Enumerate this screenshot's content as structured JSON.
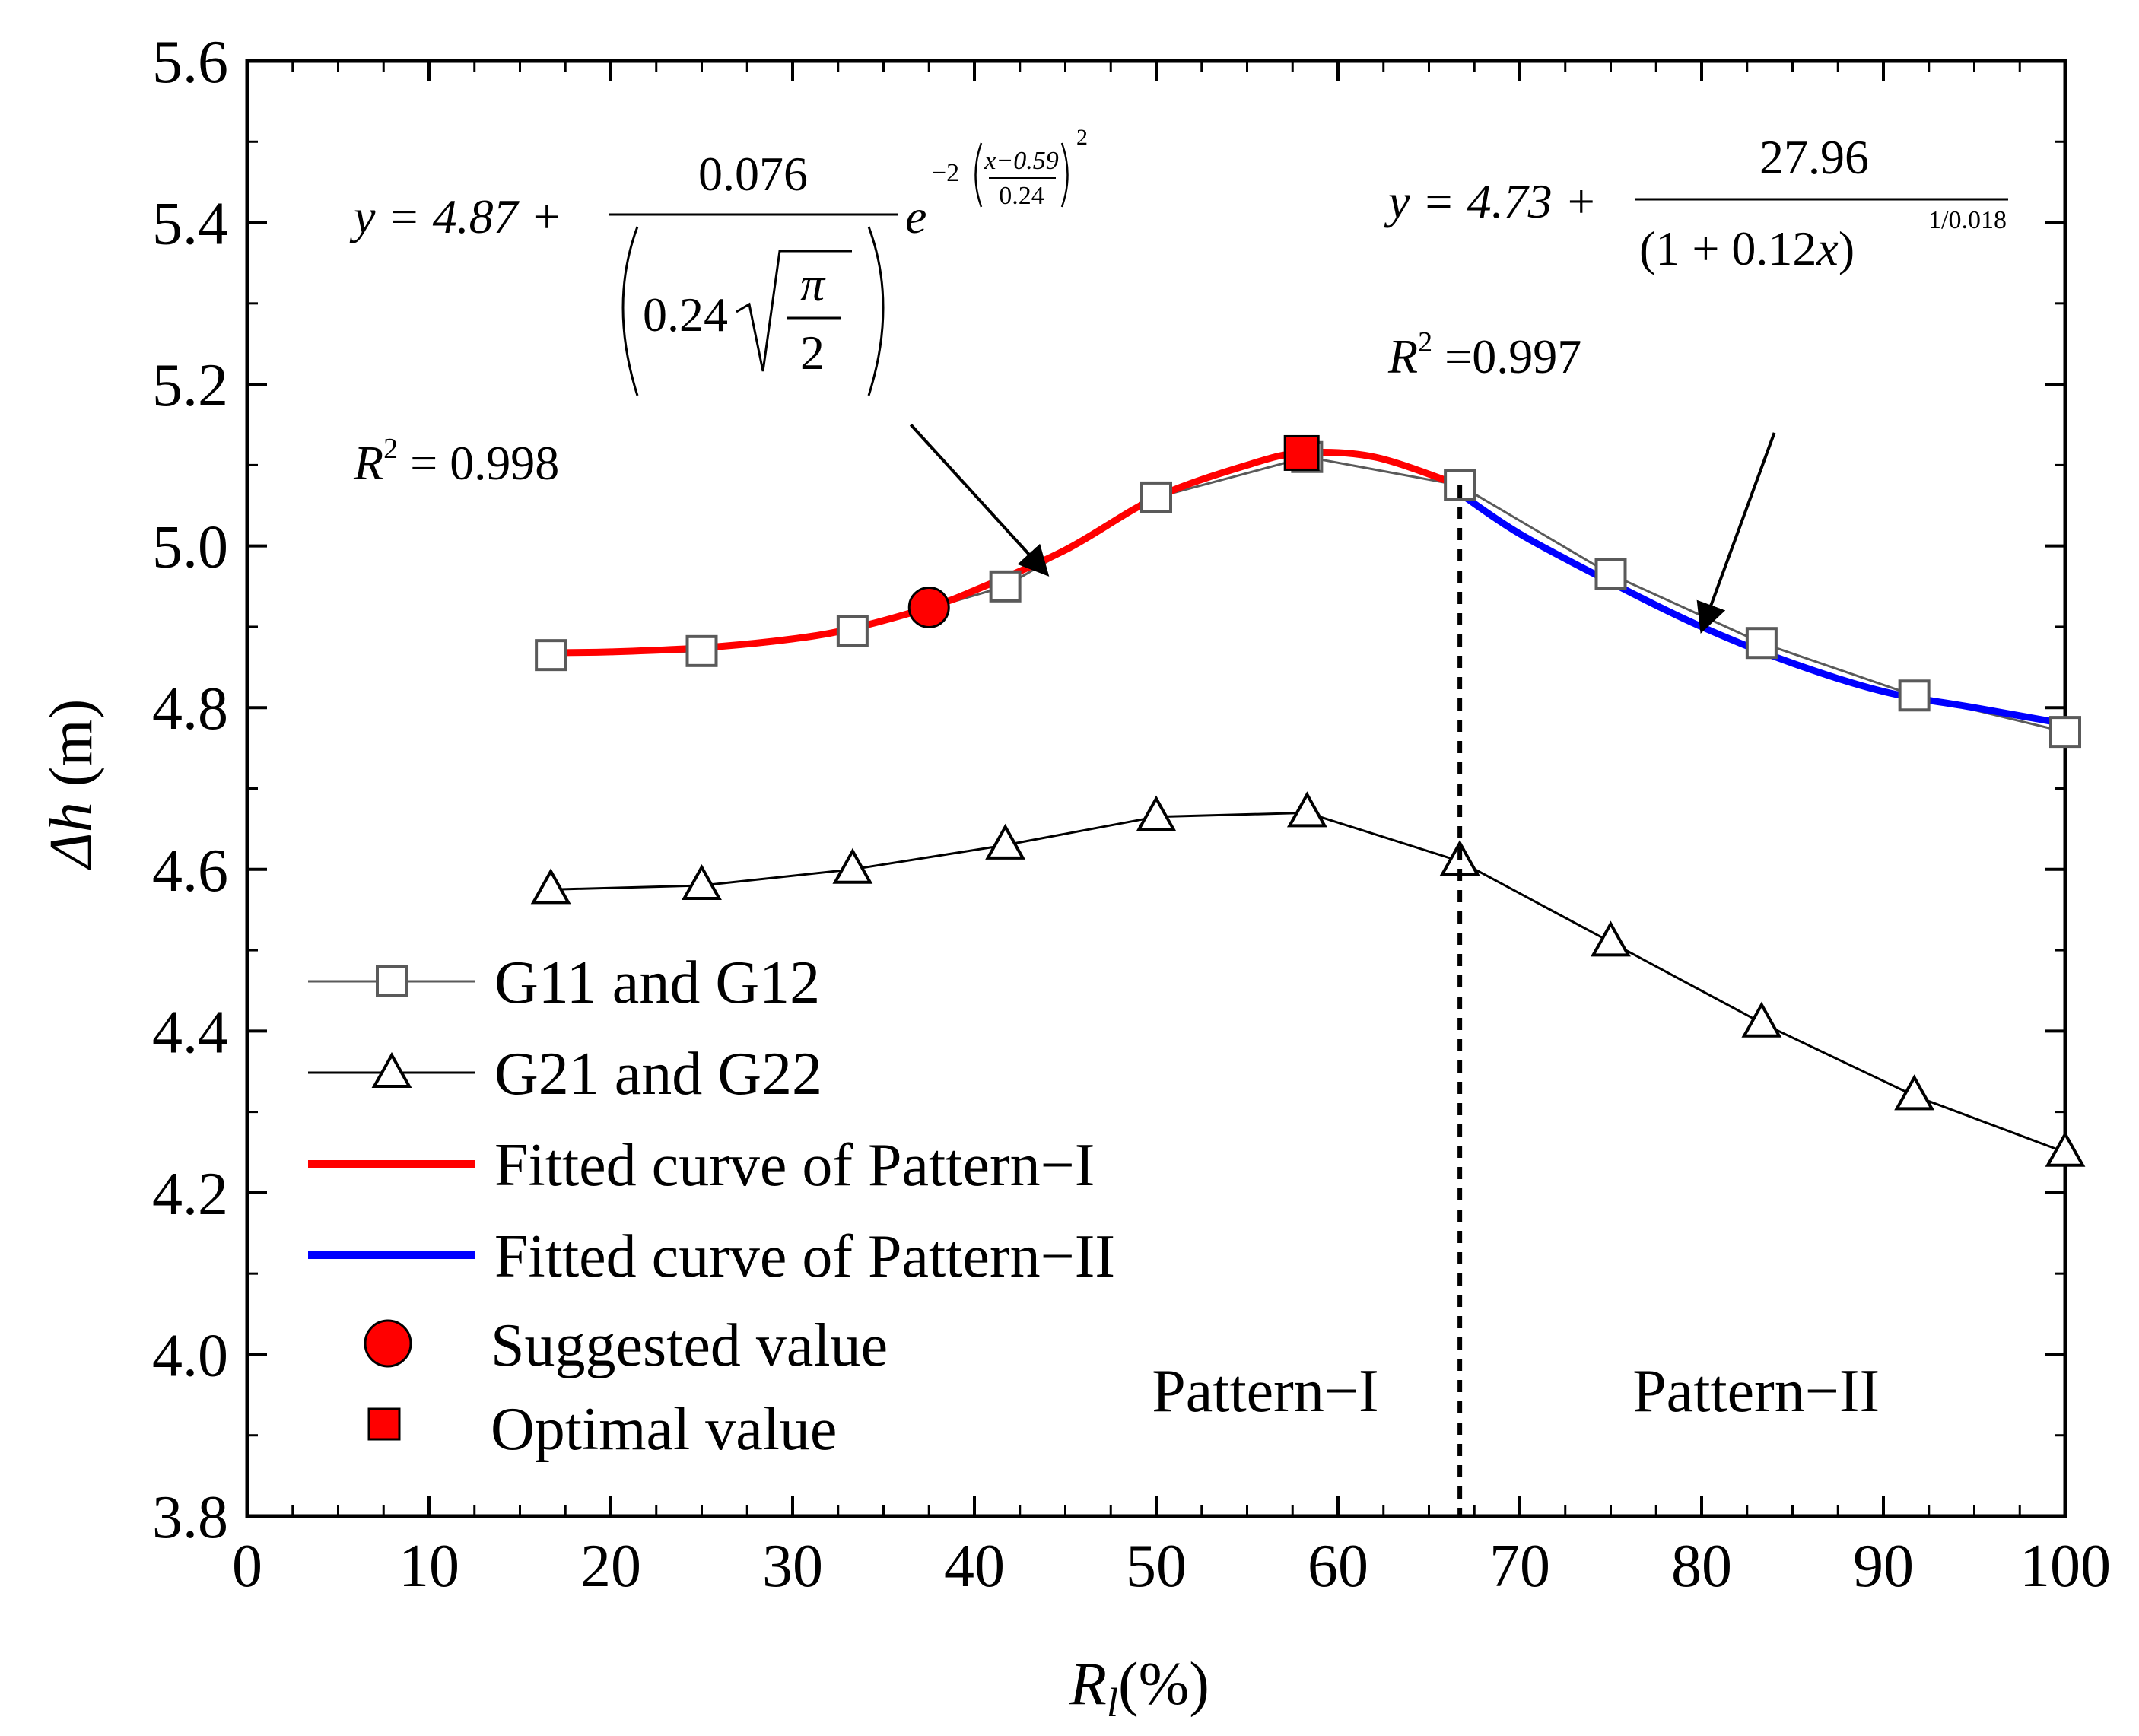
{
  "chart_data": {
    "type": "line",
    "xlabel_base": "R",
    "xlabel_sub": "l",
    "xlabel_unit": "(%)",
    "ylabel_main": "Δh",
    "ylabel_unit": " (m)",
    "xlim": [
      0,
      100
    ],
    "ylim": [
      3.8,
      5.6
    ],
    "xticks": [
      0,
      10,
      20,
      30,
      40,
      50,
      60,
      70,
      80,
      90,
      100
    ],
    "yticks": [
      3.8,
      4.0,
      4.2,
      4.4,
      4.6,
      4.8,
      5.0,
      5.2,
      5.4,
      5.6
    ],
    "grid": false,
    "legend_position": "bottom-left",
    "series": [
      {
        "name": "G11 and G12",
        "marker": "square-open",
        "color": "#5a5a5a",
        "x": [
          16.7,
          25.0,
          33.3,
          41.7,
          50.0,
          58.3,
          66.7,
          75.0,
          83.3,
          91.7,
          100.0
        ],
        "y": [
          4.865,
          4.87,
          4.895,
          4.95,
          5.06,
          5.11,
          5.075,
          4.965,
          4.88,
          4.815,
          4.77
        ]
      },
      {
        "name": "G21 and G22",
        "marker": "triangle-open",
        "color": "#000000",
        "x": [
          16.7,
          25.0,
          33.3,
          41.7,
          50.0,
          58.3,
          66.7,
          75.0,
          83.3,
          91.7,
          100.0
        ],
        "y": [
          4.575,
          4.58,
          4.6,
          4.63,
          4.665,
          4.67,
          4.61,
          4.51,
          4.41,
          4.32,
          4.25
        ]
      },
      {
        "name": "Fitted curve of Pattern−I",
        "color": "#ff0000",
        "x": [
          16.7,
          20,
          25,
          30,
          33.3,
          37.5,
          40,
          45,
          50,
          55,
          58,
          62,
          66.7
        ],
        "y": [
          4.868,
          4.869,
          4.874,
          4.885,
          4.898,
          4.924,
          4.945,
          4.995,
          5.06,
          5.1,
          5.115,
          5.11,
          5.075
        ]
      },
      {
        "name": "Fitted curve of Pattern−II",
        "color": "#0000ff",
        "x": [
          66.7,
          70,
          75,
          80,
          85,
          90,
          95,
          100
        ],
        "y": [
          5.065,
          5.015,
          4.955,
          4.9,
          4.855,
          4.82,
          4.8,
          4.78
        ]
      }
    ],
    "special_points": [
      {
        "name": "Suggested value",
        "marker": "circle-filled",
        "color": "#ff0000",
        "x": 37.5,
        "y": 4.924
      },
      {
        "name": "Optimal value",
        "marker": "square-filled",
        "color": "#ff0000",
        "x": 58.0,
        "y": 5.115
      }
    ],
    "divider": {
      "x": 66.7,
      "style": "dashed"
    },
    "regions": [
      {
        "label": "Pattern−I",
        "x": 56,
        "y": 3.93
      },
      {
        "label": "Pattern−II",
        "x": 83,
        "y": 3.93
      }
    ],
    "annotations": {
      "eq1": {
        "y_eq": "y = 4.87 +",
        "numerator": "0.076",
        "denom_coef": "0.24",
        "denom_pi": "π",
        "denom_2": "2",
        "exp_coef": "−2",
        "exp_num": "x−0.59",
        "exp_den": "0.24",
        "exp_power": "2",
        "e": "e",
        "r2_base": "R",
        "r2_power": "2",
        "r2_value": " = 0.998",
        "arrow_from": [
          36.5,
          5.15
        ],
        "arrow_to": [
          44.0,
          4.965
        ]
      },
      "eq2": {
        "y_eq": "y = 4.73 +",
        "numerator": "27.96",
        "denom": "(1 + 0.12",
        "denom_x": "x",
        "denom_close": ")",
        "exp": "1/0.018",
        "r2_base": "R",
        "r2_power": "2",
        "r2_value": " =0.997",
        "arrow_from": [
          84.0,
          5.14
        ],
        "arrow_to": [
          80.0,
          4.895
        ]
      }
    }
  }
}
